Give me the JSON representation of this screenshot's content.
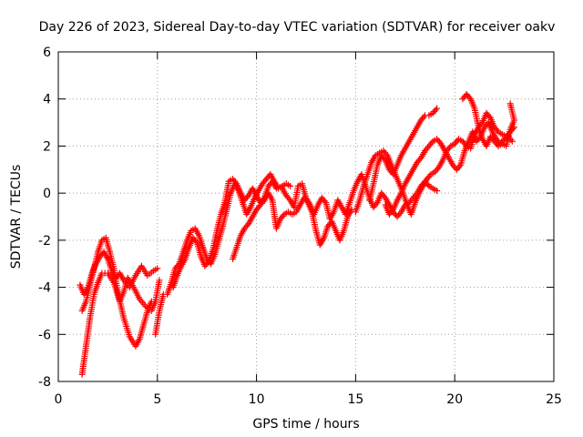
{
  "chart_data": {
    "type": "scatter",
    "title": "Day 226 of 2023, Sidereal Day-to-day VTEC variation (SDTVAR) for receiver oakv",
    "xlabel": "GPS time / hours",
    "ylabel": "SDTVAR / TECUs",
    "xlim": [
      0,
      25
    ],
    "ylim": [
      -8,
      6
    ],
    "xticks": [
      0,
      5,
      10,
      15,
      20,
      25
    ],
    "xtick_labels": [
      "0",
      "5",
      "10",
      "15",
      "20",
      "25"
    ],
    "yticks": [
      -8,
      -6,
      -4,
      -2,
      0,
      2,
      4,
      6
    ],
    "ytick_labels": [
      "-8",
      "-6",
      "-4",
      "-2",
      "0",
      "2",
      "4",
      "6"
    ],
    "grid": true,
    "marker": "+",
    "series": [
      {
        "name": "track-a",
        "color": "#ff0000",
        "points": [
          [
            1.1,
            -3.9
          ],
          [
            1.3,
            -4.3
          ],
          [
            1.5,
            -4.0
          ],
          [
            1.7,
            -3.4
          ],
          [
            1.9,
            -3.0
          ],
          [
            2.1,
            -2.7
          ],
          [
            2.3,
            -2.5
          ],
          [
            2.5,
            -2.8
          ],
          [
            2.7,
            -3.3
          ],
          [
            2.9,
            -3.6
          ],
          [
            3.1,
            -3.4
          ],
          [
            3.3,
            -3.7
          ],
          [
            3.6,
            -4.0
          ],
          [
            3.9,
            -3.5
          ],
          [
            4.2,
            -3.1
          ],
          [
            4.5,
            -3.5
          ],
          [
            4.8,
            -3.3
          ],
          [
            5.0,
            -3.2
          ]
        ]
      },
      {
        "name": "track-b",
        "color": "#ff0000",
        "points": [
          [
            1.2,
            -5.0
          ],
          [
            1.4,
            -4.6
          ],
          [
            1.6,
            -3.9
          ],
          [
            1.8,
            -3.2
          ],
          [
            2.0,
            -2.5
          ],
          [
            2.2,
            -2.0
          ],
          [
            2.4,
            -1.9
          ],
          [
            2.6,
            -2.5
          ],
          [
            2.8,
            -3.2
          ],
          [
            3.0,
            -4.2
          ],
          [
            3.3,
            -5.3
          ],
          [
            3.6,
            -6.1
          ],
          [
            3.9,
            -6.5
          ],
          [
            4.1,
            -6.2
          ],
          [
            4.3,
            -5.6
          ],
          [
            4.5,
            -5.0
          ],
          [
            4.7,
            -4.6
          ],
          [
            4.9,
            -4.6
          ],
          [
            5.1,
            -3.7
          ]
        ]
      },
      {
        "name": "track-c",
        "color": "#ff0000",
        "points": [
          [
            1.2,
            -7.7
          ],
          [
            1.4,
            -6.5
          ],
          [
            1.6,
            -5.3
          ],
          [
            1.8,
            -4.3
          ],
          [
            2.0,
            -3.8
          ],
          [
            2.2,
            -3.4
          ],
          [
            2.5,
            -3.4
          ],
          [
            2.8,
            -3.8
          ],
          [
            3.1,
            -4.6
          ],
          [
            3.3,
            -4.2
          ],
          [
            3.5,
            -3.6
          ],
          [
            3.8,
            -4.0
          ],
          [
            4.1,
            -4.5
          ],
          [
            4.4,
            -4.8
          ],
          [
            4.7,
            -5.0
          ],
          [
            4.9,
            -4.6
          ]
        ]
      },
      {
        "name": "track-d",
        "color": "#ff0000",
        "points": [
          [
            4.9,
            -6.0
          ],
          [
            5.1,
            -5.0
          ],
          [
            5.3,
            -4.3
          ],
          [
            5.5,
            -4.3
          ],
          [
            5.7,
            -3.8
          ],
          [
            5.9,
            -3.2
          ],
          [
            6.1,
            -3.0
          ],
          [
            6.3,
            -2.5
          ],
          [
            6.5,
            -2.0
          ],
          [
            6.7,
            -1.6
          ],
          [
            6.9,
            -1.5
          ],
          [
            7.1,
            -1.8
          ],
          [
            7.3,
            -2.3
          ],
          [
            7.5,
            -2.8
          ],
          [
            7.7,
            -3.0
          ],
          [
            7.9,
            -2.6
          ],
          [
            8.1,
            -2.0
          ],
          [
            8.3,
            -1.4
          ],
          [
            8.5,
            -0.7
          ],
          [
            8.7,
            0.0
          ],
          [
            8.9,
            0.4
          ],
          [
            9.1,
            0.1
          ],
          [
            9.3,
            -0.4
          ],
          [
            9.5,
            -0.9
          ],
          [
            9.7,
            -0.6
          ],
          [
            9.9,
            -0.2
          ],
          [
            10.1,
            0.1
          ],
          [
            10.3,
            0.4
          ],
          [
            10.5,
            0.6
          ],
          [
            10.7,
            0.8
          ],
          [
            10.9,
            0.5
          ],
          [
            11.1,
            0.2
          ],
          [
            11.3,
            0.3
          ],
          [
            11.5,
            0.4
          ],
          [
            11.7,
            0.3
          ]
        ]
      },
      {
        "name": "track-e",
        "color": "#ff0000",
        "points": [
          [
            5.8,
            -4.0
          ],
          [
            6.0,
            -3.5
          ],
          [
            6.2,
            -3.1
          ],
          [
            6.4,
            -2.8
          ],
          [
            6.6,
            -2.3
          ],
          [
            6.8,
            -1.9
          ],
          [
            7.0,
            -2.1
          ],
          [
            7.2,
            -2.7
          ],
          [
            7.4,
            -3.1
          ],
          [
            7.6,
            -2.9
          ],
          [
            7.8,
            -2.4
          ],
          [
            8.0,
            -1.6
          ],
          [
            8.2,
            -0.9
          ],
          [
            8.4,
            -0.4
          ],
          [
            8.6,
            0.5
          ],
          [
            8.8,
            0.6
          ],
          [
            9.0,
            0.4
          ],
          [
            9.2,
            0.0
          ],
          [
            9.4,
            -0.3
          ],
          [
            9.6,
            -0.1
          ],
          [
            9.8,
            0.2
          ],
          [
            10.0,
            -0.1
          ],
          [
            10.2,
            -0.4
          ],
          [
            10.4,
            -0.2
          ],
          [
            10.6,
            0.3
          ],
          [
            10.8,
            0.5
          ],
          [
            11.0,
            0.2
          ]
        ]
      },
      {
        "name": "track-f",
        "color": "#ff0000",
        "points": [
          [
            8.8,
            -2.8
          ],
          [
            9.0,
            -2.3
          ],
          [
            9.2,
            -1.8
          ],
          [
            9.4,
            -1.5
          ],
          [
            9.6,
            -1.3
          ],
          [
            9.8,
            -1.0
          ],
          [
            10.0,
            -0.7
          ],
          [
            10.2,
            -0.5
          ],
          [
            10.4,
            -0.3
          ],
          [
            10.6,
            0.0
          ],
          [
            10.8,
            -0.3
          ],
          [
            11.0,
            -1.5
          ],
          [
            11.2,
            -1.1
          ],
          [
            11.4,
            -0.9
          ],
          [
            11.6,
            -0.8
          ],
          [
            11.8,
            -0.9
          ],
          [
            12.0,
            -0.8
          ],
          [
            12.2,
            -0.5
          ],
          [
            12.4,
            -0.2
          ],
          [
            12.6,
            -0.4
          ],
          [
            12.8,
            -0.8
          ],
          [
            13.0,
            -1.6
          ],
          [
            13.2,
            -2.2
          ],
          [
            13.4,
            -1.9
          ],
          [
            13.6,
            -1.4
          ],
          [
            13.8,
            -1.2
          ],
          [
            14.0,
            -1.6
          ],
          [
            14.2,
            -2.0
          ],
          [
            14.4,
            -1.6
          ],
          [
            14.6,
            -1.0
          ],
          [
            14.8,
            -0.7
          ]
        ]
      },
      {
        "name": "track-g",
        "color": "#ff0000",
        "points": [
          [
            11.3,
            0.2
          ],
          [
            11.5,
            -0.1
          ],
          [
            11.7,
            -0.3
          ],
          [
            11.9,
            -0.6
          ],
          [
            12.1,
            0.3
          ],
          [
            12.3,
            0.4
          ],
          [
            12.5,
            -0.2
          ],
          [
            12.7,
            -0.5
          ],
          [
            12.9,
            -0.9
          ],
          [
            13.1,
            -0.5
          ],
          [
            13.3,
            -0.2
          ],
          [
            13.5,
            -0.4
          ],
          [
            13.7,
            -1.1
          ],
          [
            13.9,
            -0.8
          ],
          [
            14.1,
            -0.3
          ],
          [
            14.3,
            -0.6
          ],
          [
            14.5,
            -0.9
          ],
          [
            14.7,
            -0.4
          ],
          [
            14.9,
            0.1
          ],
          [
            15.1,
            0.5
          ],
          [
            15.3,
            0.8
          ],
          [
            15.5,
            0.3
          ],
          [
            15.7,
            -0.2
          ],
          [
            15.9,
            -0.6
          ],
          [
            16.1,
            -0.4
          ],
          [
            16.3,
            0.0
          ],
          [
            16.5,
            -0.2
          ],
          [
            16.7,
            -0.5
          ],
          [
            16.9,
            -0.8
          ],
          [
            17.1,
            -1.0
          ],
          [
            17.3,
            -0.8
          ],
          [
            17.5,
            -0.5
          ],
          [
            17.7,
            -0.4
          ],
          [
            17.9,
            -0.2
          ],
          [
            18.1,
            0.0
          ],
          [
            18.3,
            0.3
          ],
          [
            18.5,
            0.5
          ],
          [
            18.7,
            0.3
          ],
          [
            18.9,
            0.2
          ],
          [
            19.1,
            0.1
          ]
        ]
      },
      {
        "name": "track-h",
        "color": "#ff0000",
        "points": [
          [
            15.0,
            -0.8
          ],
          [
            15.2,
            -0.3
          ],
          [
            15.4,
            0.3
          ],
          [
            15.6,
            0.8
          ],
          [
            15.8,
            1.3
          ],
          [
            16.0,
            1.6
          ],
          [
            16.2,
            1.7
          ],
          [
            16.4,
            1.8
          ],
          [
            16.6,
            1.6
          ],
          [
            16.8,
            1.2
          ],
          [
            17.0,
            0.8
          ],
          [
            17.2,
            0.4
          ],
          [
            17.4,
            0.0
          ],
          [
            17.6,
            -0.5
          ],
          [
            17.8,
            -0.9
          ],
          [
            18.0,
            -0.4
          ],
          [
            18.2,
            0.0
          ],
          [
            18.4,
            0.3
          ],
          [
            18.6,
            0.6
          ],
          [
            18.8,
            0.8
          ],
          [
            19.0,
            0.9
          ],
          [
            19.2,
            1.1
          ],
          [
            19.4,
            1.4
          ],
          [
            19.6,
            1.8
          ],
          [
            19.8,
            2.0
          ],
          [
            20.0,
            2.1
          ],
          [
            20.2,
            2.3
          ],
          [
            20.4,
            2.2
          ],
          [
            20.6,
            2.0
          ],
          [
            20.8,
            1.9
          ],
          [
            21.0,
            2.5
          ],
          [
            21.2,
            2.8
          ],
          [
            21.4,
            3.0
          ],
          [
            21.6,
            3.4
          ],
          [
            21.8,
            3.2
          ],
          [
            22.0,
            2.8
          ],
          [
            22.2,
            2.6
          ],
          [
            22.4,
            2.5
          ],
          [
            22.6,
            2.4
          ],
          [
            22.8,
            2.6
          ],
          [
            23.0,
            2.8
          ]
        ]
      },
      {
        "name": "track-i",
        "color": "#ff0000",
        "points": [
          [
            15.7,
            -0.3
          ],
          [
            15.9,
            0.4
          ],
          [
            16.1,
            1.2
          ],
          [
            16.3,
            1.6
          ],
          [
            16.5,
            1.4
          ],
          [
            16.7,
            1.0
          ],
          [
            16.9,
            0.8
          ],
          [
            17.1,
            1.2
          ],
          [
            17.3,
            1.6
          ],
          [
            17.5,
            1.9
          ],
          [
            17.7,
            2.2
          ],
          [
            17.9,
            2.5
          ],
          [
            18.1,
            2.8
          ],
          [
            18.3,
            3.1
          ],
          [
            18.5,
            3.3
          ],
          [
            18.7,
            3.3
          ],
          [
            18.9,
            3.4
          ],
          [
            19.1,
            3.6
          ]
        ]
      },
      {
        "name": "track-j",
        "color": "#ff0000",
        "points": [
          [
            16.5,
            -0.5
          ],
          [
            16.7,
            -0.9
          ],
          [
            16.9,
            -0.7
          ],
          [
            17.1,
            -0.3
          ],
          [
            17.3,
            0.0
          ],
          [
            17.5,
            0.4
          ],
          [
            17.7,
            0.7
          ],
          [
            17.9,
            1.0
          ],
          [
            18.1,
            1.3
          ],
          [
            18.3,
            1.5
          ],
          [
            18.5,
            1.8
          ],
          [
            18.7,
            2.0
          ],
          [
            18.9,
            2.2
          ],
          [
            19.1,
            2.3
          ],
          [
            19.3,
            2.1
          ],
          [
            19.5,
            1.8
          ],
          [
            19.7,
            1.5
          ],
          [
            19.9,
            1.2
          ],
          [
            20.1,
            1.0
          ],
          [
            20.3,
            1.2
          ],
          [
            20.5,
            1.8
          ],
          [
            20.7,
            2.2
          ],
          [
            20.9,
            2.6
          ],
          [
            21.1,
            2.2
          ],
          [
            21.3,
            2.4
          ],
          [
            21.5,
            2.8
          ],
          [
            21.7,
            3.0
          ],
          [
            21.9,
            2.6
          ],
          [
            22.1,
            2.3
          ],
          [
            22.3,
            2.1
          ],
          [
            22.5,
            2.3
          ],
          [
            22.7,
            2.4
          ],
          [
            22.9,
            2.2
          ]
        ]
      },
      {
        "name": "track-k",
        "color": "#ff0000",
        "points": [
          [
            20.4,
            4.0
          ],
          [
            20.6,
            4.2
          ],
          [
            20.8,
            4.0
          ],
          [
            21.0,
            3.6
          ],
          [
            21.2,
            2.8
          ],
          [
            21.4,
            2.3
          ],
          [
            21.6,
            2.0
          ],
          [
            21.8,
            2.4
          ],
          [
            22.0,
            2.2
          ],
          [
            22.2,
            2.0
          ],
          [
            22.4,
            2.1
          ],
          [
            22.6,
            2.0
          ],
          [
            22.8,
            2.7
          ],
          [
            23.0,
            3.1
          ],
          [
            22.8,
            3.8
          ]
        ]
      }
    ]
  }
}
